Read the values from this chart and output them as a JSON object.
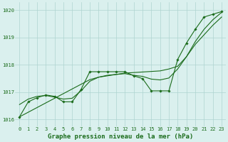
{
  "title": "Graphe pression niveau de la mer (hPa)",
  "hours": [
    0,
    1,
    2,
    3,
    4,
    5,
    6,
    7,
    8,
    9,
    10,
    11,
    12,
    13,
    14,
    15,
    16,
    17,
    18,
    19,
    20,
    21,
    22,
    23
  ],
  "y_detail": [
    1016.1,
    1016.65,
    1016.8,
    1016.9,
    1016.85,
    1016.65,
    1016.65,
    1017.1,
    1017.75,
    1017.75,
    1017.75,
    1017.75,
    1017.75,
    1017.6,
    1017.5,
    1017.05,
    1017.05,
    1017.05,
    1018.2,
    1018.8,
    1019.3,
    1019.75,
    1019.85,
    1019.95
  ],
  "y_smooth": [
    1016.55,
    1016.75,
    1016.85,
    1016.88,
    1016.82,
    1016.75,
    1016.78,
    1017.05,
    1017.4,
    1017.55,
    1017.62,
    1017.65,
    1017.68,
    1017.62,
    1017.58,
    1017.48,
    1017.45,
    1017.52,
    1017.85,
    1018.3,
    1018.75,
    1019.1,
    1019.45,
    1019.75
  ],
  "y_trend": [
    1016.1,
    1016.27,
    1016.44,
    1016.61,
    1016.78,
    1016.95,
    1017.12,
    1017.29,
    1017.46,
    1017.55,
    1017.6,
    1017.65,
    1017.7,
    1017.72,
    1017.74,
    1017.76,
    1017.78,
    1017.85,
    1017.95,
    1018.3,
    1018.85,
    1019.3,
    1019.65,
    1019.92
  ],
  "ylim": [
    1015.75,
    1020.3
  ],
  "yticks": [
    1016,
    1017,
    1018,
    1019,
    1020
  ],
  "bg_color": "#daf0ee",
  "grid_color": "#aed4d0",
  "line_color": "#1a6b1a",
  "title_color": "#1a6b1a",
  "title_fontsize": 6.5,
  "tick_fontsize": 5.0
}
